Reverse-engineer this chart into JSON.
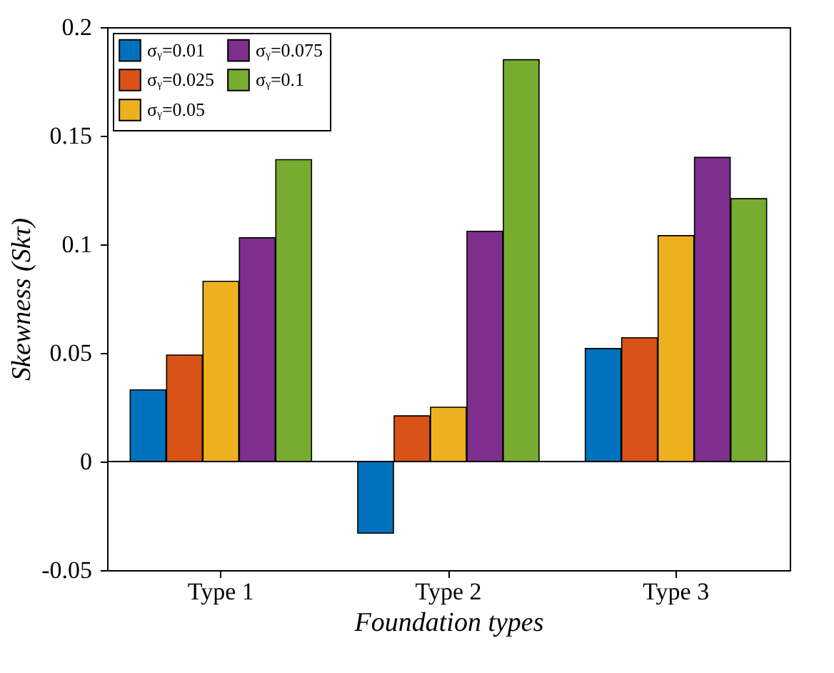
{
  "chart_data": {
    "type": "bar",
    "xlabel": "Foundation types",
    "ylabel": "Skewness (Skτ)",
    "categories": [
      "Type 1",
      "Type 2",
      "Type 3"
    ],
    "series": [
      {
        "name": "σᵧ=0.01",
        "color": "#0072bd",
        "values": [
          0.033,
          -0.033,
          0.052
        ]
      },
      {
        "name": "σᵧ=0.025",
        "color": "#d95319",
        "values": [
          0.049,
          0.021,
          0.057
        ]
      },
      {
        "name": "σᵧ=0.05",
        "color": "#edb120",
        "values": [
          0.083,
          0.025,
          0.104
        ]
      },
      {
        "name": "σᵧ=0.075",
        "color": "#7e2f8e",
        "values": [
          0.103,
          0.106,
          0.14
        ]
      },
      {
        "name": "σᵧ=0.1",
        "color": "#77ac30",
        "values": [
          0.139,
          0.185,
          0.121
        ]
      }
    ],
    "ylim": [
      -0.05,
      0.2
    ],
    "yticks": [
      -0.05,
      0,
      0.05,
      0.1,
      0.15,
      0.2
    ],
    "ref_lines": [
      {
        "axis": "y",
        "value": 0
      }
    ],
    "grid": false,
    "legend": "top left"
  }
}
